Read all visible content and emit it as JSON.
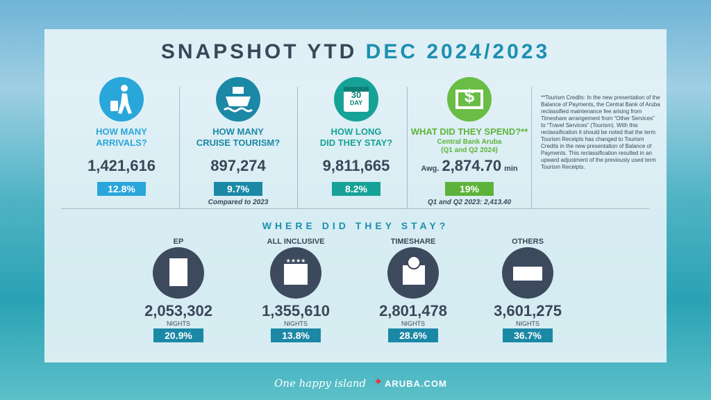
{
  "header": {
    "title": "SNAPSHOT YTD",
    "title_highlight": "DEC 2024/2023"
  },
  "stats": [
    {
      "question": [
        "HOW MANY",
        "ARRIVALS?"
      ],
      "value": "1,421,616",
      "change": "12.8%"
    },
    {
      "question": [
        "HOW MANY",
        "CRUISE TOURISM?"
      ],
      "value": "897,274",
      "change": "9.7%",
      "note": "Compared to 2023"
    },
    {
      "icon_text": [
        "30",
        "DAY"
      ],
      "question": [
        "HOW LONG",
        "DID THEY STAY?"
      ],
      "value": "9,811,665",
      "change": "8.2%"
    },
    {
      "icon_text": [
        "$"
      ],
      "question": [
        "WHAT DID THEY SPEND?**"
      ],
      "source": [
        "Central Bank Aruba",
        "(Q1 and Q2 2024)"
      ],
      "prefix": "Awg.",
      "value": "2,874.70",
      "suffix": "min",
      "change": "19%",
      "note": "Q1 and Q2 2023: 2,413.40"
    }
  ],
  "footnote": "**Tourism Credits: In the new presentation of the Balance of Payments, the Central Bank of Aruba reclassified maintenance fee arising from Timeshare arrangement from “Other Services” to “Travel Services” (Tourism). With this reclassification it should be noted that the term Tourism Receipts has changed to Tourism Credits in the new presentation of Balance of Payments. This reclassification resulted in an upward adjustment of the previously used term Tourism Receipts.",
  "stay_section": {
    "title": "WHERE DID THEY STAY?",
    "items": [
      {
        "label": "EP",
        "value": "2,053,302",
        "unit": "NIGHTS",
        "share": "20.9%"
      },
      {
        "label": "ALL INCLUSIVE",
        "value": "1,355,610",
        "unit": "NIGHTS",
        "share": "13.8%"
      },
      {
        "label": "TIMESHARE",
        "value": "2,801,478",
        "unit": "NIGHTS",
        "share": "28.6%"
      },
      {
        "label": "OTHERS",
        "value": "3,601,275",
        "unit": "NIGHTS",
        "share": "36.7%"
      }
    ]
  },
  "footer": {
    "slogan": "One happy island",
    "site": "ARUBA.COM"
  }
}
